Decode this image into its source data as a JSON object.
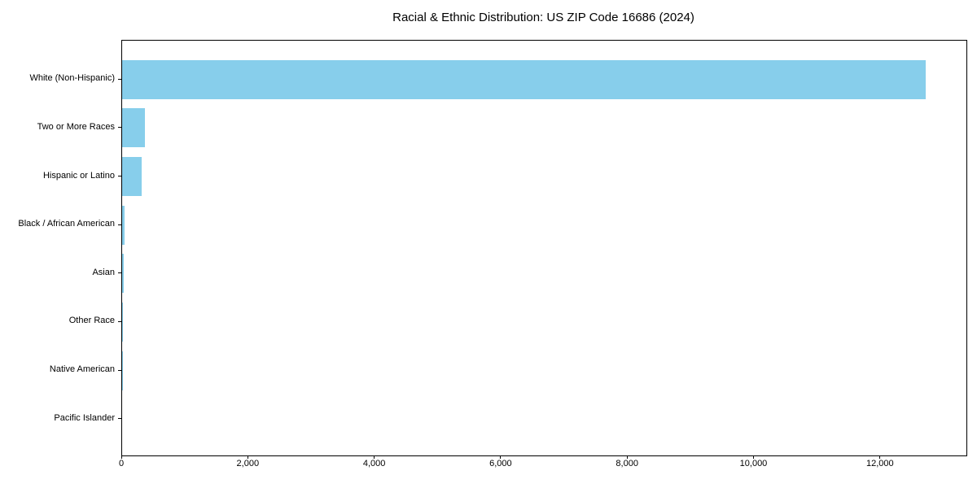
{
  "chart_data": {
    "type": "bar",
    "orientation": "horizontal",
    "title": "Racial & Ethnic Distribution: US ZIP Code 16686 (2024)",
    "categories": [
      "White (Non-Hispanic)",
      "Two or More Races",
      "Hispanic or Latino",
      "Black / African American",
      "Asian",
      "Other Race",
      "Native American",
      "Pacific Islander"
    ],
    "values": [
      12710,
      365,
      310,
      45,
      20,
      5,
      2,
      0
    ],
    "xlabel": "",
    "ylabel": "",
    "xlim": [
      0,
      13355
    ],
    "x_ticks": [
      0,
      2000,
      4000,
      6000,
      8000,
      10000,
      12000
    ],
    "x_tick_labels": [
      "0",
      "2,000",
      "4,000",
      "6,000",
      "8,000",
      "10,000",
      "12,000"
    ],
    "bar_color": "#87CEEB",
    "grid": false,
    "legend": null
  }
}
